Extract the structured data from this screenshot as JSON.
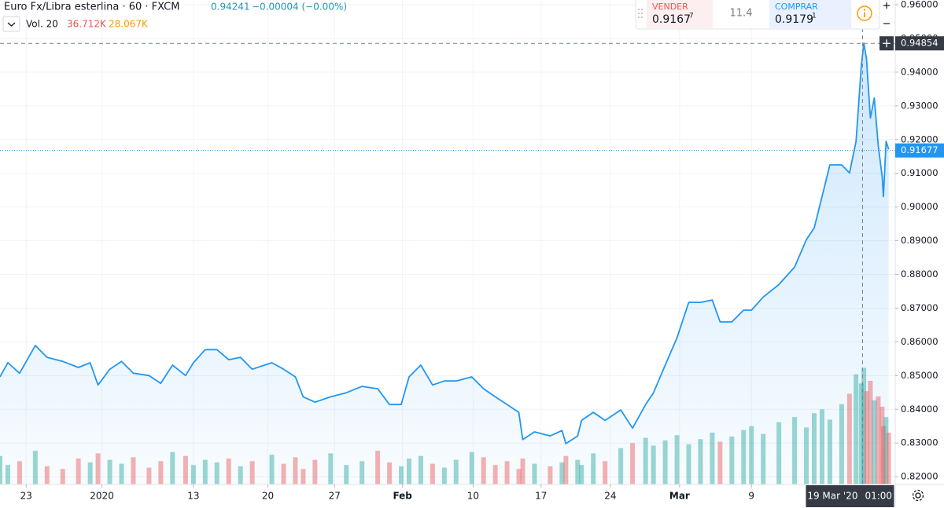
{
  "header": {
    "title": "Euro Fx/Libra esterlina · 60 · FXCM",
    "last": "0.94241",
    "change": "−0.00004 (−0.00%)"
  },
  "trade_panel": {
    "sell_label": "VENDER",
    "sell_price": "0.9167",
    "sell_pip": "7",
    "spread": "11.4",
    "buy_label": "COMPRAR",
    "buy_price": "0.9179",
    "buy_pip": "1"
  },
  "chart_data": {
    "type": "line",
    "color": "#2196f3",
    "x": [
      -2.0,
      -1.4,
      -0.5,
      0.7,
      1.6,
      2.8,
      4.0,
      4.9,
      5.5,
      6.4,
      7.3,
      8.2,
      9.4,
      10.3,
      11.2,
      12.2,
      12.8,
      13.7,
      14.6,
      15.5,
      16.4,
      17.3,
      18.8,
      19.7,
      20.6,
      21.2,
      22.1,
      23.3,
      24.5,
      25.7,
      26.9,
      27.8,
      28.7,
      29.3,
      30.2,
      31.1,
      32.0,
      32.9,
      34.1,
      35.0,
      35.9,
      36.8,
      37.7,
      38.0,
      38.9,
      40.1,
      41.0,
      41.3,
      42.2,
      42.5,
      43.4,
      44.3,
      45.5,
      46.4,
      47.4,
      48.0,
      48.9,
      49.8,
      50.7,
      51.6,
      52.5,
      53.1,
      54.0,
      54.9,
      55.5,
      56.4,
      57.6,
      58.8,
      59.7,
      60.3,
      60.9,
      61.5,
      62.4,
      63.0,
      63.5,
      63.9,
      64.1,
      64.3,
      64.6,
      64.9,
      65.2,
      65.5,
      65.6,
      65.8,
      66.0
    ],
    "values": [
      0.8496,
      0.8538,
      0.8507,
      0.8589,
      0.8554,
      0.8542,
      0.8524,
      0.8538,
      0.8472,
      0.8519,
      0.8542,
      0.8507,
      0.85,
      0.8477,
      0.8531,
      0.85,
      0.8538,
      0.8577,
      0.8577,
      0.8547,
      0.8554,
      0.8519,
      0.8538,
      0.8519,
      0.8496,
      0.8437,
      0.8421,
      0.8437,
      0.8449,
      0.8468,
      0.8461,
      0.8414,
      0.8414,
      0.8496,
      0.8531,
      0.8472,
      0.8484,
      0.8484,
      0.8496,
      0.8461,
      0.8437,
      0.8414,
      0.8391,
      0.831,
      0.8333,
      0.8321,
      0.8337,
      0.8298,
      0.8321,
      0.8367,
      0.8391,
      0.8367,
      0.8398,
      0.8344,
      0.8414,
      0.8449,
      0.8531,
      0.8612,
      0.8717,
      0.8717,
      0.8724,
      0.8659,
      0.8659,
      0.8694,
      0.8694,
      0.8733,
      0.877,
      0.8822,
      0.8903,
      0.8938,
      0.9031,
      0.9125,
      0.9125,
      0.9101,
      0.9195,
      0.9416,
      0.9486,
      0.9439,
      0.9264,
      0.9323,
      0.9183,
      0.909,
      0.9031,
      0.9195,
      0.9171
    ],
    "xlim": [
      -2.0,
      66.5
    ],
    "ylim": [
      0.8177,
      0.9614
    ],
    "xticks": [
      {
        "value": 0,
        "label": "23"
      },
      {
        "value": 5.8,
        "label": "2020"
      },
      {
        "value": 12.8,
        "label": "13"
      },
      {
        "value": 18.5,
        "label": "20"
      },
      {
        "value": 23.6,
        "label": "27"
      },
      {
        "value": 28.8,
        "label": "Feb"
      },
      {
        "value": 34.2,
        "label": "10"
      },
      {
        "value": 39.4,
        "label": "17"
      },
      {
        "value": 44.7,
        "label": "24"
      },
      {
        "value": 50,
        "label": "Mar"
      },
      {
        "value": 55.5,
        "label": "9"
      }
    ],
    "yticks": [
      {
        "value": 0.96,
        "label": "0.96000"
      },
      {
        "value": 0.95,
        "label": "0.95000"
      },
      {
        "value": 0.94,
        "label": "0.94000"
      },
      {
        "value": 0.93,
        "label": "0.93000"
      },
      {
        "value": 0.92,
        "label": "0.92000"
      },
      {
        "value": 0.91,
        "label": "0.91000"
      },
      {
        "value": 0.9,
        "label": "0.90000"
      },
      {
        "value": 0.89,
        "label": "0.89000"
      },
      {
        "value": 0.88,
        "label": "0.88000"
      },
      {
        "value": 0.87,
        "label": "0.87000"
      },
      {
        "value": 0.86,
        "label": "0.86000"
      },
      {
        "value": 0.85,
        "label": "0.85000"
      },
      {
        "value": 0.84,
        "label": "0.84000"
      },
      {
        "value": 0.83,
        "label": "0.83000"
      },
      {
        "value": 0.82,
        "label": "0.82000"
      }
    ],
    "grid": true,
    "last_price": {
      "value": 0.91677,
      "label": "0.91677"
    },
    "crosshair": {
      "x": 64.0,
      "price": {
        "value": 0.94854,
        "label": "0.94854"
      },
      "date_label": "19 Mar '20",
      "time_label": "01:00"
    },
    "volume": {
      "title": "Vol. 20",
      "lim": [
        0,
        100000
      ],
      "up_color": "#26a69a",
      "down_color": "#ef5350",
      "values": [
        22000,
        15000,
        18000,
        26000,
        14000,
        12000,
        20000,
        17000,
        24000,
        19000,
        16000,
        21000,
        13000,
        18000,
        25000,
        22000,
        15000,
        19000,
        17000,
        20000,
        14000,
        18000,
        23000,
        16000,
        21000,
        12000,
        19000,
        24000,
        15000,
        18000,
        26000,
        17000,
        14000,
        20000,
        22000,
        16000,
        13000,
        19000,
        25000,
        21000,
        15000,
        18000,
        12000,
        20000,
        16000,
        14000,
        17000,
        22000,
        19000,
        15000,
        24000,
        18000,
        28000,
        32000,
        36000,
        30000,
        34000,
        38000,
        31000,
        35000,
        40000,
        33000,
        37000,
        42000,
        45000,
        39000,
        48000,
        52000,
        44000,
        55000,
        58000,
        50000,
        62000,
        70000,
        85000,
        78000,
        90000,
        72000,
        80000,
        65000,
        68000,
        60000,
        45000,
        52000,
        40000
      ],
      "legend_values": [
        {
          "value": 36712,
          "label": "36.712K",
          "color": "#ef5350"
        },
        {
          "value": 28067,
          "label": "28.067K",
          "color": "#ff9800"
        }
      ]
    }
  }
}
